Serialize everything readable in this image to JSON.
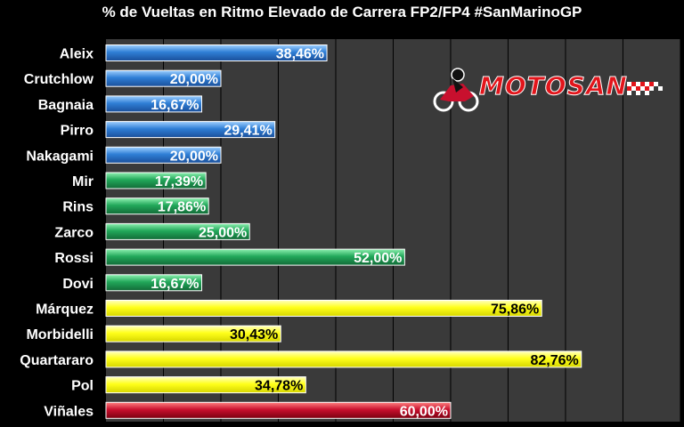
{
  "colors": {
    "blue": "#2f7fd6",
    "green": "#22a85a",
    "yellow": "#ffff1a",
    "red": "#c8102e",
    "background": "#000000",
    "plot_area": "#3a3a3a",
    "grid": "#000000"
  },
  "logo": {
    "text": "MOTOSAN",
    "icon": "motorcycle-rider-icon"
  },
  "chart_data": {
    "type": "bar",
    "orientation": "horizontal",
    "title": "% de Vueltas en Ritmo Elevado de Carrera FP2/FP4 #SanMarinoGP",
    "xlabel": "",
    "ylabel": "",
    "xlim": [
      0,
      100
    ],
    "grid": true,
    "legend": "none",
    "categories": [
      "Aleix",
      "Crutchlow",
      "Bagnaia",
      "Pirro",
      "Nakagami",
      "Mir",
      "Rins",
      "Zarco",
      "Rossi",
      "Dovi",
      "Márquez",
      "Morbidelli",
      "Quartararo",
      "Pol",
      "Viñales"
    ],
    "values": [
      38.46,
      20.0,
      16.67,
      29.41,
      20.0,
      17.39,
      17.86,
      25.0,
      52.0,
      16.67,
      75.86,
      30.43,
      82.76,
      34.78,
      60.0
    ],
    "value_labels": [
      "38,46%",
      "20,00%",
      "16,67%",
      "29,41%",
      "20,00%",
      "17,39%",
      "17,86%",
      "25,00%",
      "52,00%",
      "16,67%",
      "75,86%",
      "30,43%",
      "82,76%",
      "34,78%",
      "60,00%"
    ],
    "bar_colors": [
      "blue",
      "blue",
      "blue",
      "blue",
      "blue",
      "green",
      "green",
      "green",
      "green",
      "green",
      "yellow",
      "yellow",
      "yellow",
      "yellow",
      "red"
    ]
  }
}
